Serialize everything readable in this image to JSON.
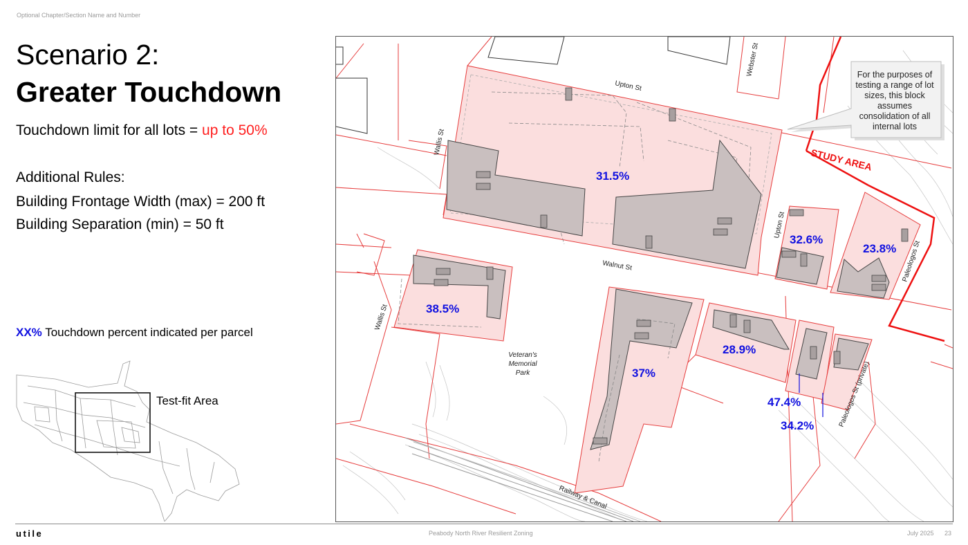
{
  "header": {
    "section_label": "Optional Chapter/Section Name and Number"
  },
  "title": {
    "line1": "Scenario 2:",
    "line2": "Greater Touchdown"
  },
  "touchdown": {
    "prefix": "Touchdown limit for all lots = ",
    "value": "up to 50%",
    "value_color": "#ff2020"
  },
  "rules": {
    "heading": "Additional Rules:",
    "items": [
      "Building Frontage Width (max) = 200 ft",
      "Building Separation (min) = 50 ft"
    ]
  },
  "legend": {
    "key": "XX%",
    "text": " Touchdown percent indicated per parcel",
    "key_color": "#1010e0"
  },
  "inset": {
    "label": "Test-fit Area"
  },
  "map": {
    "streets": {
      "upton_top": "Upton St",
      "webster": "Webster St",
      "wallis_top": "Wallis St",
      "walnut": "Walnut St",
      "upton_side": "Upton St",
      "paleologos": "Paleologos St",
      "wallis_bottom": "Wallis St",
      "paleologos_private": "Paleologos St (private)",
      "railway": "Railway & Canal"
    },
    "park": [
      "Veteran's",
      "Memorial",
      "Park"
    ],
    "study_area": "STUDY AREA",
    "callout": [
      "For the purposes of",
      "testing a range of lot",
      "sizes, this block",
      "assumes",
      "consolidation of all",
      "internal lots"
    ],
    "parcel_percents": {
      "main_block": "31.5%",
      "upton_lot": "32.6%",
      "paleologos_lot": "23.8%",
      "wallis_lot": "38.5%",
      "center_lot": "37%",
      "walnut_east": "28.9%",
      "small_lot_a": "47.4%",
      "small_lot_b": "34.2%"
    },
    "colors": {
      "lot_line": "#e63b3b",
      "parcel_fill": "#fbdede",
      "building_fill": "#c9bfbf",
      "study_area": "#ee1111",
      "percent_text": "#1010e0"
    }
  },
  "footer": {
    "logo": "utile",
    "center": "Peabody North River Resilient Zoning",
    "date": "July 2025",
    "page": "23"
  }
}
